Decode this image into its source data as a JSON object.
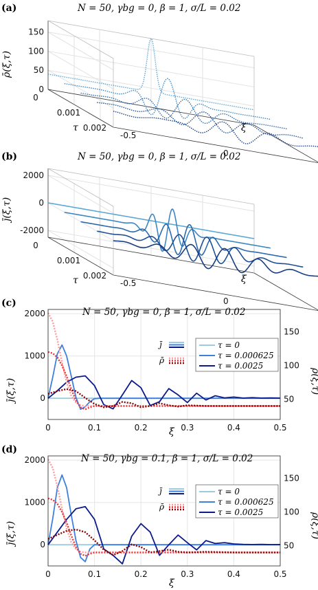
{
  "figure": {
    "panels": [
      {
        "letter": "(a)",
        "title": "N = 50, γbg = 0, β = 1, σ/L = 0.02"
      },
      {
        "letter": "(b)",
        "title": "N = 50, γbg = 0, β = 1, σ/L = 0.02"
      },
      {
        "letter": "(c)",
        "title": "N = 50, γbg = 0, β = 1, σ/L = 0.02"
      },
      {
        "letter": "(d)",
        "title": "N = 50, γbg = 0.1, β = 1, σ/L = 0.02"
      }
    ]
  },
  "chart_data": [
    {
      "type": "line",
      "panel": "(a)",
      "projection": "3d waterfall",
      "zlabel": "ρ̄(ξ,τ)",
      "ylabel": "τ",
      "xlabel": "ξ",
      "zticks": [
        0,
        50,
        100,
        150
      ],
      "yticks": [
        "0",
        "0.001",
        "0.002"
      ],
      "xticks": [
        "-0.5",
        "0",
        "0.5"
      ],
      "zlim": [
        0,
        180
      ],
      "ylim": [
        0,
        0.0025
      ],
      "xlim": [
        -0.5,
        0.5
      ],
      "style": "dotted",
      "taus": [
        0,
        0.000625,
        0.00125,
        0.001875,
        0.0025
      ],
      "colors": [
        "#5aa8d6",
        "#3a86c4",
        "#2a69ad",
        "#1d4f94",
        "#173d80"
      ],
      "series_model": "Gaussian initial bump (peak ≈180, baseline ≈40 at τ=0) spreading and oscillating with increasing τ"
    },
    {
      "type": "line",
      "panel": "(b)",
      "projection": "3d waterfall",
      "zlabel": "j̄(ξ,τ)",
      "ylabel": "τ",
      "xlabel": "ξ",
      "zticks": [
        -2000,
        0,
        2000
      ],
      "yticks": [
        "0",
        "0.001",
        "0.002"
      ],
      "xticks": [
        "-0.5",
        "0",
        "0.5"
      ],
      "zlim": [
        -2500,
        2500
      ],
      "style": "solid",
      "taus": [
        0,
        0.000625,
        0.00125,
        0.001875,
        0.0025
      ],
      "colors": [
        "#5aa8d6",
        "#3a86c4",
        "#2a69ad",
        "#1d4f94",
        "#173d80"
      ]
    },
    {
      "type": "line",
      "panel": "(c)",
      "xlabel": "ξ",
      "ylabel": "j̄(ξ,τ)",
      "y2label": "ρ̄(ξ,τ)",
      "xlim": [
        0,
        0.5
      ],
      "ylim": [
        -500,
        2100
      ],
      "y2lim": [
        20,
        183
      ],
      "xticks": [
        "0",
        "0.1",
        "0.2",
        "0.3",
        "0.4",
        "0.5"
      ],
      "yticks": [
        "0",
        "1000",
        "2000"
      ],
      "y2ticks": [
        "50",
        "100",
        "150"
      ],
      "grid": true,
      "legend": {
        "placement": "right",
        "j_label": "j̄",
        "rho_label": "ρ̄",
        "entries": [
          "τ = 0",
          "τ = 0.000625",
          "τ = 0.0025"
        ]
      },
      "series": [
        {
          "name": "τ = 0",
          "kind": "j",
          "color": "#9ecae1",
          "x": [
            0,
            0.5
          ],
          "y": [
            0,
            0
          ]
        },
        {
          "name": "τ = 0.000625",
          "kind": "j",
          "color": "#3d7fe0",
          "x": [
            0,
            0.01,
            0.02,
            0.03,
            0.04,
            0.05,
            0.06,
            0.07,
            0.08,
            0.09,
            0.1,
            0.11,
            0.12,
            0.14,
            0.16,
            0.2,
            0.5
          ],
          "y": [
            0,
            500,
            1050,
            1260,
            1000,
            520,
            20,
            -260,
            -200,
            -80,
            -10,
            0,
            0,
            0,
            0,
            0,
            0
          ]
        },
        {
          "name": "τ = 0.0025",
          "kind": "j",
          "color": "#0a1a8a",
          "x": [
            0,
            0.02,
            0.04,
            0.06,
            0.08,
            0.1,
            0.12,
            0.14,
            0.16,
            0.18,
            0.2,
            0.22,
            0.24,
            0.26,
            0.28,
            0.3,
            0.32,
            0.34,
            0.36,
            0.38,
            0.4,
            0.42,
            0.44,
            0.46,
            0.48,
            0.5
          ],
          "y": [
            0,
            180,
            380,
            500,
            530,
            300,
            -150,
            -250,
            80,
            420,
            250,
            -170,
            -80,
            230,
            80,
            -100,
            120,
            -40,
            60,
            10,
            30,
            5,
            15,
            5,
            8,
            5
          ]
        },
        {
          "name": "τ = 0",
          "kind": "rho",
          "color": "#ff9b9b",
          "x": [
            0,
            0.01,
            0.02,
            0.03,
            0.04,
            0.05,
            0.06,
            0.07,
            0.08,
            0.1,
            0.5
          ],
          "y": [
            178,
            165,
            138,
            105,
            75,
            55,
            45,
            41,
            40,
            40,
            40
          ]
        },
        {
          "name": "τ = 0.000625",
          "kind": "rho",
          "color": "#e8353a",
          "x": [
            0,
            0.01,
            0.02,
            0.03,
            0.04,
            0.05,
            0.06,
            0.07,
            0.08,
            0.09,
            0.1,
            0.12,
            0.14,
            0.5
          ],
          "y": [
            120,
            118,
            112,
            100,
            84,
            65,
            48,
            38,
            35,
            38,
            40,
            40,
            40,
            40
          ]
        },
        {
          "name": "τ = 0.0025",
          "kind": "rho",
          "color": "#8b0000",
          "x": [
            0,
            0.02,
            0.04,
            0.06,
            0.08,
            0.1,
            0.12,
            0.14,
            0.16,
            0.18,
            0.2,
            0.22,
            0.24,
            0.26,
            0.28,
            0.3,
            0.34,
            0.4,
            0.5
          ],
          "y": [
            58,
            62,
            65,
            62,
            52,
            43,
            38,
            40,
            46,
            44,
            38,
            40,
            44,
            41,
            39,
            41,
            40,
            40,
            40
          ]
        }
      ]
    },
    {
      "type": "line",
      "panel": "(d)",
      "xlabel": "ξ",
      "ylabel": "j̄(ξ,τ)",
      "y2label": "ρ̄(ξ,τ)",
      "xlim": [
        0,
        0.5
      ],
      "ylim": [
        -500,
        2100
      ],
      "y2lim": [
        20,
        183
      ],
      "xticks": [
        "0",
        "0.1",
        "0.2",
        "0.3",
        "0.4",
        "0.5"
      ],
      "yticks": [
        "0",
        "1000",
        "2000"
      ],
      "y2ticks": [
        "50",
        "100",
        "150"
      ],
      "grid": true,
      "legend": {
        "placement": "right",
        "j_label": "j̄",
        "rho_label": "ρ̄",
        "entries": [
          "τ = 0",
          "τ = 0.000625",
          "τ = 0.0025"
        ]
      },
      "series": [
        {
          "name": "τ = 0",
          "kind": "j",
          "color": "#9ecae1",
          "x": [
            0,
            0.5
          ],
          "y": [
            0,
            0
          ]
        },
        {
          "name": "τ = 0.000625",
          "kind": "j",
          "color": "#3d7fe0",
          "x": [
            0,
            0.01,
            0.02,
            0.03,
            0.04,
            0.05,
            0.06,
            0.07,
            0.08,
            0.09,
            0.1,
            0.11,
            0.12,
            0.14,
            0.5
          ],
          "y": [
            0,
            620,
            1350,
            1650,
            1350,
            700,
            100,
            -300,
            -400,
            -100,
            0,
            0,
            0,
            0,
            0
          ]
        },
        {
          "name": "τ = 0.0025",
          "kind": "j",
          "color": "#0a1a8a",
          "x": [
            0,
            0.02,
            0.04,
            0.06,
            0.08,
            0.1,
            0.12,
            0.14,
            0.16,
            0.18,
            0.2,
            0.22,
            0.24,
            0.26,
            0.28,
            0.3,
            0.32,
            0.34,
            0.36,
            0.38,
            0.4,
            0.42,
            0.44,
            0.46,
            0.48,
            0.5
          ],
          "y": [
            0,
            300,
            600,
            850,
            900,
            600,
            -100,
            -250,
            -450,
            200,
            500,
            300,
            -250,
            0,
            230,
            50,
            -120,
            100,
            30,
            50,
            20,
            10,
            5,
            8,
            3,
            5
          ]
        },
        {
          "name": "τ = 0",
          "kind": "rho",
          "color": "#ff9b9b",
          "x": [
            0,
            0.01,
            0.02,
            0.03,
            0.04,
            0.05,
            0.06,
            0.07,
            0.08,
            0.1,
            0.5
          ],
          "y": [
            178,
            165,
            138,
            105,
            75,
            55,
            45,
            41,
            40,
            40,
            40
          ]
        },
        {
          "name": "τ = 0.000625",
          "kind": "rho",
          "color": "#e8353a",
          "x": [
            0,
            0.01,
            0.02,
            0.03,
            0.04,
            0.05,
            0.06,
            0.07,
            0.08,
            0.09,
            0.1,
            0.12,
            0.14,
            0.5
          ],
          "y": [
            120,
            118,
            112,
            100,
            84,
            65,
            48,
            38,
            35,
            38,
            40,
            40,
            40,
            40
          ]
        },
        {
          "name": "τ = 0.0025",
          "kind": "rho",
          "color": "#8b0000",
          "x": [
            0,
            0.02,
            0.04,
            0.06,
            0.08,
            0.1,
            0.12,
            0.14,
            0.16,
            0.18,
            0.2,
            0.22,
            0.24,
            0.26,
            0.28,
            0.3,
            0.34,
            0.4,
            0.5
          ],
          "y": [
            60,
            66,
            72,
            74,
            70,
            58,
            44,
            36,
            42,
            52,
            48,
            40,
            42,
            44,
            41,
            40,
            41,
            40,
            40
          ]
        }
      ]
    }
  ]
}
